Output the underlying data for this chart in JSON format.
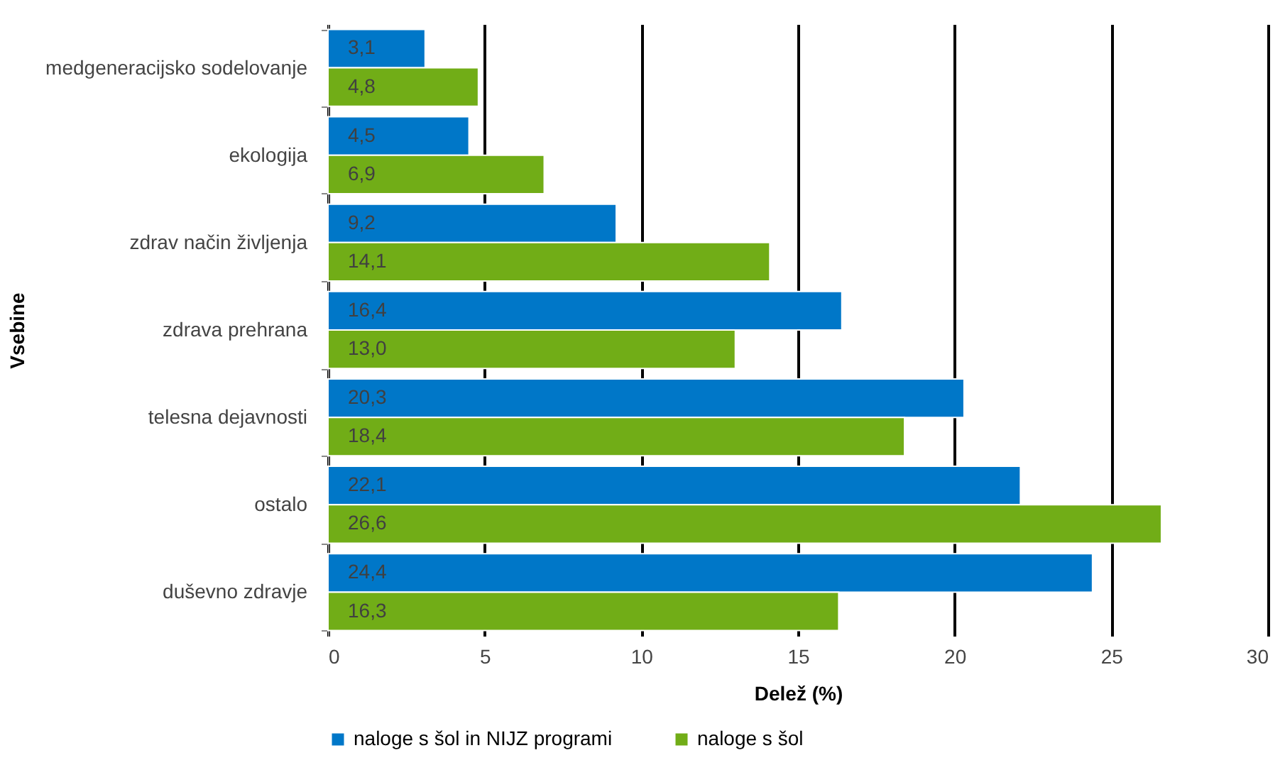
{
  "chart_data": {
    "type": "bar",
    "orientation": "horizontal",
    "xlabel": "Delež (%)",
    "ylabel": "Vsebine",
    "categories": [
      "medgeneracijsko sodelovanje",
      "ekologija",
      "zdrav način življenja",
      "zdrava prehrana",
      "telesna dejavnosti",
      "ostalo",
      "duševno zdravje"
    ],
    "series": [
      {
        "name": "naloge s šol in NIJZ programi",
        "color": "#0077c8",
        "values": [
          3.1,
          4.5,
          9.2,
          16.4,
          20.3,
          22.1,
          24.4
        ],
        "value_labels": [
          "3,1",
          "4,5",
          "9,2",
          "16,4",
          "20,3",
          "22,1",
          "24,4"
        ]
      },
      {
        "name": "naloge s šol",
        "color": "#71ad17",
        "values": [
          4.8,
          6.9,
          14.1,
          13.0,
          18.4,
          26.6,
          16.3
        ],
        "value_labels": [
          "4,8",
          "6,9",
          "14,1",
          "13,0",
          "18,4",
          "26,6",
          "16,3"
        ]
      }
    ],
    "xlim": [
      0,
      30
    ],
    "xticks": [
      0,
      5,
      10,
      15,
      20,
      25,
      30
    ],
    "grid": "x",
    "legend": "bottom"
  }
}
